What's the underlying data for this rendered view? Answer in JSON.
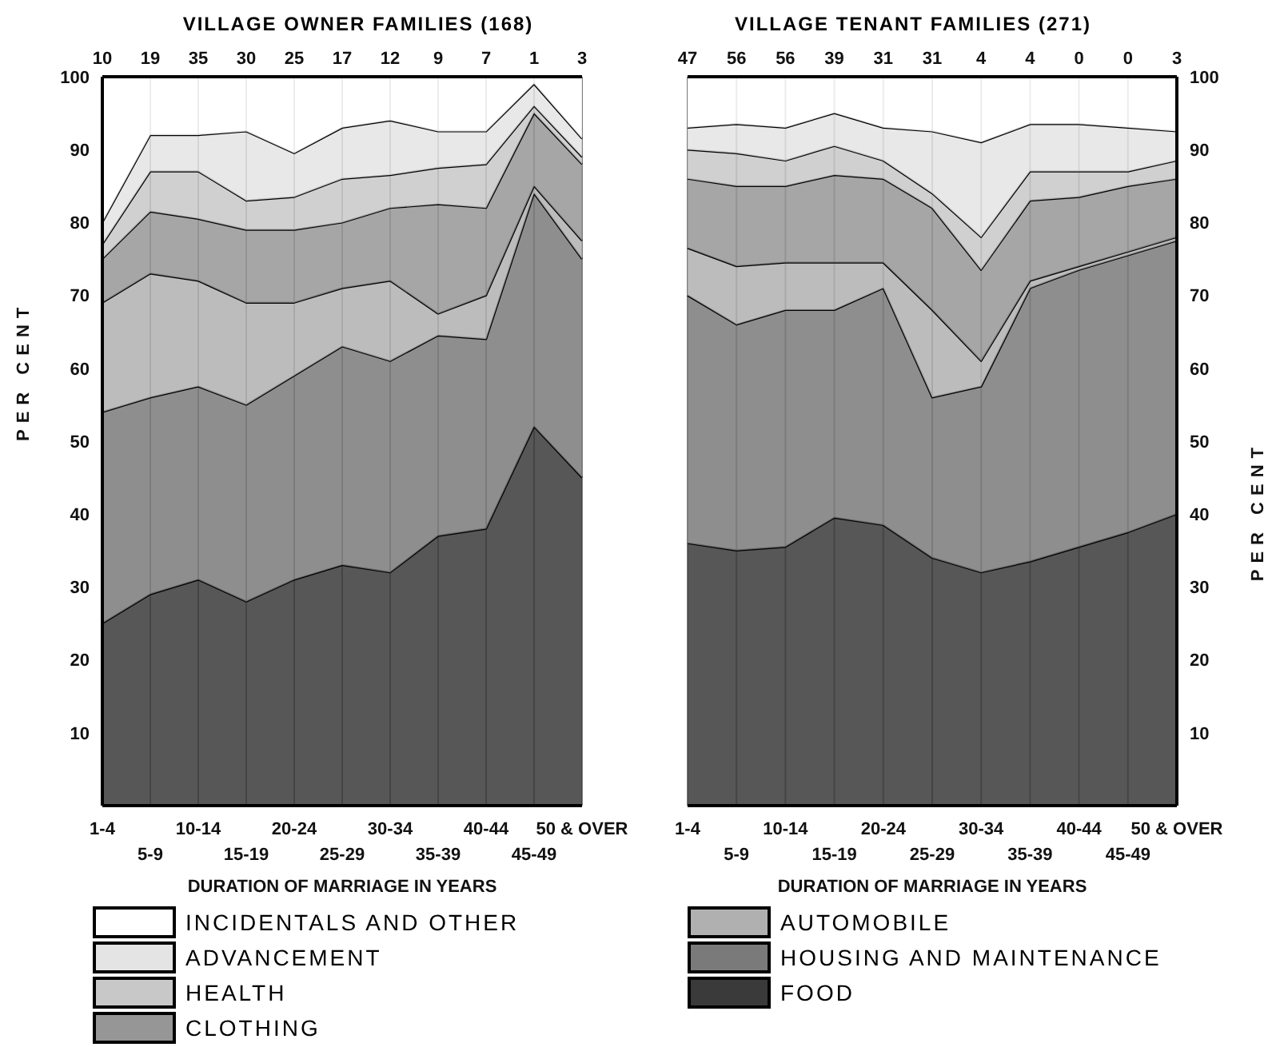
{
  "chart_data": [
    {
      "type": "area",
      "title": "VILLAGE OWNER FAMILIES (168)",
      "xlabel": "DURATION OF MARRIAGE IN YEARS",
      "ylabel": "PER CENT",
      "categories": [
        "1-4",
        "5-9",
        "10-14",
        "15-19",
        "20-24",
        "25-29",
        "30-34",
        "35-39",
        "40-44",
        "45-49",
        "50 & OVER"
      ],
      "stacked": true,
      "ylim": [
        0,
        100
      ],
      "yticks": [
        10,
        20,
        30,
        40,
        50,
        60,
        70,
        80,
        90,
        100
      ],
      "grid": true,
      "legend": "bottom",
      "annotations": [
        "10",
        "19",
        "35",
        "30",
        "25",
        "17",
        "12",
        "9",
        "7",
        "1",
        "3"
      ],
      "series": [
        {
          "color": "#3a3a3a",
          "values": [
            25,
            29,
            31,
            28,
            31,
            33,
            32,
            37,
            38,
            52,
            45
          ]
        },
        {
          "color": "#7a7a7a",
          "values": [
            29,
            27,
            26.5,
            27,
            28,
            30,
            29,
            27.5,
            26,
            32,
            30
          ]
        },
        {
          "color": "#b0b0b0",
          "values": [
            15,
            17,
            14.5,
            14,
            10,
            8,
            11,
            3,
            6,
            1,
            2.5
          ]
        },
        {
          "name": "CLOTHING",
          "color": "#969696",
          "values": [
            6,
            8.5,
            8.5,
            10,
            10,
            9,
            10,
            15,
            12,
            10,
            10.5
          ]
        },
        {
          "name": "HEALTH",
          "color": "#c8c8c8",
          "values": [
            2,
            5.5,
            6.5,
            4,
            4.5,
            6,
            4.5,
            5,
            6,
            1,
            1
          ]
        },
        {
          "name": "ADVANCEMENT",
          "color": "#e4e4e4",
          "values": [
            3,
            5,
            5,
            9.5,
            6,
            7,
            7.5,
            5,
            4.5,
            3,
            2.5
          ]
        },
        {
          "name": "INCIDENTALS AND OTHER",
          "color": "#ffffff",
          "values": [
            20,
            8,
            8,
            7.5,
            10.5,
            7,
            6,
            7.5,
            7.5,
            1,
            8.5
          ]
        }
      ]
    },
    {
      "type": "area",
      "title": "VILLAGE TENANT FAMILIES (271)",
      "xlabel": "DURATION OF MARRIAGE IN YEARS",
      "y2label": "PER CENT",
      "categories": [
        "1-4",
        "5-9",
        "10-14",
        "15-19",
        "20-24",
        "25-29",
        "30-34",
        "35-39",
        "40-44",
        "45-49",
        "50 & OVER"
      ],
      "stacked": true,
      "y2lim": [
        0,
        100
      ],
      "y2ticks": [
        10,
        20,
        30,
        40,
        50,
        60,
        70,
        80,
        90,
        100
      ],
      "grid": true,
      "legend": "bottom",
      "annotations": [
        "47",
        "56",
        "56",
        "39",
        "31",
        "31",
        "4",
        "4",
        "0",
        "0",
        "3"
      ],
      "series": [
        {
          "name": "FOOD",
          "axis": "y2",
          "color": "#3a3a3a",
          "values": [
            36,
            35,
            35.5,
            39.5,
            38.5,
            34,
            32,
            33.5,
            35.5,
            37.5,
            40
          ]
        },
        {
          "name": "HOUSING AND MAINTENANCE",
          "axis": "y2",
          "color": "#7a7a7a",
          "values": [
            34,
            31,
            32.5,
            28.5,
            32.5,
            22,
            25.5,
            37.5,
            38,
            38,
            37.5
          ]
        },
        {
          "name": "AUTOMOBILE",
          "axis": "y2",
          "color": "#b0b0b0",
          "values": [
            6.5,
            8,
            6.5,
            6.5,
            3.5,
            12,
            3.5,
            1,
            0.5,
            0.5,
            0.5
          ]
        },
        {
          "axis": "y2",
          "color": "#969696",
          "values": [
            9.5,
            11,
            10.5,
            12,
            11.5,
            14,
            12.5,
            11,
            9.5,
            9,
            8
          ]
        },
        {
          "axis": "y2",
          "color": "#c8c8c8",
          "values": [
            4,
            4.5,
            3.5,
            4,
            2.5,
            2,
            4.5,
            4,
            3.5,
            2,
            2.5
          ]
        },
        {
          "axis": "y2",
          "color": "#e4e4e4",
          "values": [
            3,
            4,
            4.5,
            4.5,
            4.5,
            8.5,
            13,
            6.5,
            6.5,
            6,
            4
          ]
        },
        {
          "axis": "y2",
          "color": "#ffffff",
          "values": [
            7,
            6.5,
            7,
            5,
            7,
            7.5,
            9,
            6.5,
            6.5,
            7,
            7.5
          ]
        }
      ]
    }
  ]
}
